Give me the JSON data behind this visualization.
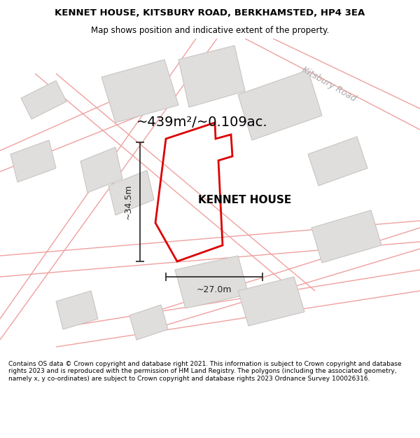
{
  "title_line1": "KENNET HOUSE, KITSBURY ROAD, BERKHAMSTED, HP4 3EA",
  "title_line2": "Map shows position and indicative extent of the property.",
  "property_label": "KENNET HOUSE",
  "area_label": "~439m²/~0.109ac.",
  "dim_width": "~27.0m",
  "dim_height": "~34.5m",
  "road_label": "Kitsbury Road",
  "footer_text": "Contains OS data © Crown copyright and database right 2021. This information is subject to Crown copyright and database rights 2023 and is reproduced with the permission of HM Land Registry. The polygons (including the associated geometry, namely x, y co-ordinates) are subject to Crown copyright and database rights 2023 Ordnance Survey 100026316.",
  "bg_color": "#ffffff",
  "map_bg": "#f5f3f0",
  "building_fill": "#e0dedd",
  "building_edge": "#c8c5c2",
  "road_fill": "#ffffff",
  "road_lines_color": "#f0a0a0",
  "property_outline_color": "#dd0000",
  "dim_line_color": "#222222",
  "title_color": "#000000",
  "text_color": "#000000",
  "road_label_color": "#aaaaaa",
  "title_fontsize": 9.5,
  "subtitle_fontsize": 8.5,
  "area_fontsize": 14,
  "dim_fontsize": 9,
  "property_label_fontsize": 11,
  "road_label_fontsize": 9,
  "footer_fontsize": 6.5
}
